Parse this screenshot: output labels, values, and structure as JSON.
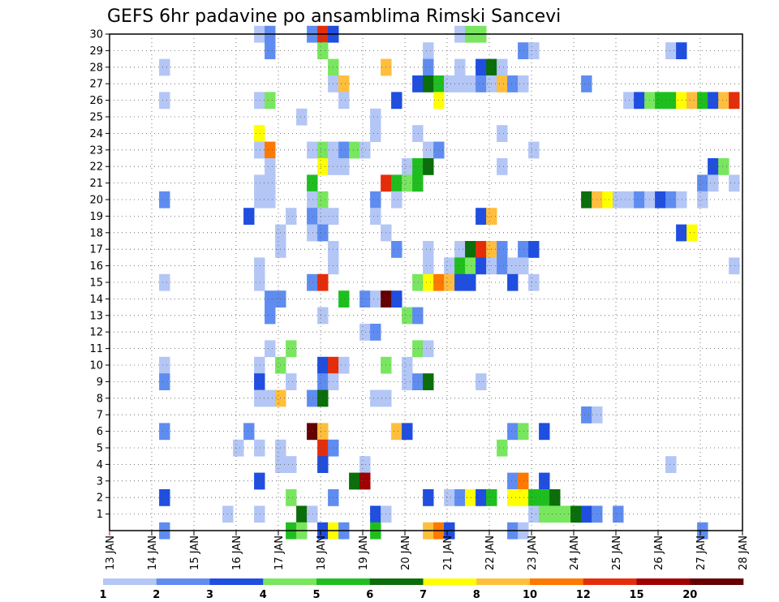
{
  "chart_data": {
    "type": "heatmap",
    "title": "GEFS 6hr padavine po ansamblima Rimski Sancevi",
    "xlabel": "",
    "ylabel": "",
    "x_ticks": [
      "13 JAN",
      "14 JAN",
      "15 JAN",
      "16 JAN",
      "17 JAN",
      "18 JAN",
      "19 JAN",
      "20 JAN",
      "21 JAN",
      "22 JAN",
      "23 JAN",
      "24 JAN",
      "25 JAN",
      "26 JAN",
      "27 JAN",
      "28 JAN"
    ],
    "x_range_days": [
      13,
      28
    ],
    "y_ticks": [
      1,
      2,
      3,
      4,
      5,
      6,
      7,
      8,
      9,
      10,
      11,
      12,
      13,
      14,
      15,
      16,
      17,
      18,
      19,
      20,
      21,
      22,
      23,
      24,
      25,
      26,
      27,
      28,
      29,
      30
    ],
    "y_range": [
      0,
      30
    ],
    "grid": true,
    "colorbar": {
      "labels": [
        "1",
        "2",
        "3",
        "4",
        "5",
        "6",
        "7",
        "8",
        "10",
        "12",
        "15",
        "20"
      ],
      "colors": [
        "#b3c6f5",
        "#5f8cf0",
        "#1f4ee0",
        "#78e65f",
        "#1fbe1f",
        "#0a6e0a",
        "#ffff00",
        "#ffbe3c",
        "#ff7800",
        "#e62d0a",
        "#a00000",
        "#640000"
      ]
    },
    "cells": [
      [
        30,
        16.55,
        0
      ],
      [
        30,
        16.8,
        1
      ],
      [
        30,
        17.8,
        1
      ],
      [
        30,
        18.05,
        9
      ],
      [
        30,
        18.3,
        2
      ],
      [
        30,
        21.3,
        0
      ],
      [
        30,
        21.55,
        3
      ],
      [
        30,
        21.8,
        3
      ],
      [
        29,
        16.8,
        1
      ],
      [
        29,
        18.05,
        3
      ],
      [
        29,
        20.55,
        0
      ],
      [
        29,
        22.8,
        1
      ],
      [
        29,
        23.05,
        0
      ],
      [
        29,
        26.3,
        0
      ],
      [
        29,
        26.55,
        2
      ],
      [
        28,
        14.3,
        0
      ],
      [
        28,
        18.3,
        3
      ],
      [
        28,
        19.55,
        7
      ],
      [
        28,
        20.55,
        1
      ],
      [
        28,
        21.3,
        0
      ],
      [
        28,
        21.8,
        2
      ],
      [
        28,
        22.05,
        5
      ],
      [
        28,
        22.3,
        0
      ],
      [
        27,
        18.3,
        0
      ],
      [
        27,
        18.55,
        7
      ],
      [
        27,
        20.3,
        2
      ],
      [
        27,
        20.55,
        5
      ],
      [
        27,
        20.8,
        4
      ],
      [
        27,
        21.05,
        0
      ],
      [
        27,
        21.3,
        0
      ],
      [
        27,
        21.55,
        0
      ],
      [
        27,
        21.8,
        1
      ],
      [
        27,
        22.05,
        0
      ],
      [
        27,
        22.3,
        7
      ],
      [
        27,
        22.55,
        1
      ],
      [
        27,
        22.8,
        0
      ],
      [
        27,
        24.3,
        1
      ],
      [
        26,
        14.3,
        0
      ],
      [
        26,
        16.55,
        0
      ],
      [
        26,
        16.8,
        3
      ],
      [
        26,
        18.55,
        0
      ],
      [
        26,
        19.8,
        2
      ],
      [
        26,
        20.8,
        6
      ],
      [
        26,
        25.3,
        0
      ],
      [
        26,
        25.55,
        2
      ],
      [
        26,
        25.8,
        3
      ],
      [
        26,
        26.05,
        4
      ],
      [
        26,
        26.3,
        4
      ],
      [
        26,
        26.55,
        6
      ],
      [
        26,
        26.8,
        7
      ],
      [
        26,
        27.05,
        4
      ],
      [
        26,
        27.3,
        2
      ],
      [
        26,
        27.55,
        7
      ],
      [
        26,
        27.8,
        9
      ],
      [
        25,
        17.55,
        0
      ],
      [
        25,
        19.3,
        0
      ],
      [
        24,
        16.55,
        6
      ],
      [
        24,
        19.3,
        0
      ],
      [
        24,
        20.3,
        0
      ],
      [
        24,
        22.3,
        0
      ],
      [
        23,
        16.55,
        0
      ],
      [
        23,
        16.8,
        8
      ],
      [
        23,
        17.8,
        0
      ],
      [
        23,
        18.05,
        3
      ],
      [
        23,
        18.3,
        0
      ],
      [
        23,
        18.55,
        1
      ],
      [
        23,
        18.8,
        3
      ],
      [
        23,
        19.05,
        0
      ],
      [
        23,
        20.55,
        0
      ],
      [
        23,
        20.8,
        1
      ],
      [
        23,
        23.05,
        0
      ],
      [
        22,
        16.8,
        0
      ],
      [
        22,
        18.05,
        6
      ],
      [
        22,
        18.3,
        0
      ],
      [
        22,
        18.55,
        0
      ],
      [
        22,
        20.05,
        0
      ],
      [
        22,
        20.3,
        4
      ],
      [
        22,
        20.55,
        5
      ],
      [
        22,
        22.3,
        0
      ],
      [
        22,
        27.3,
        2
      ],
      [
        22,
        27.55,
        3
      ],
      [
        21,
        16.55,
        0
      ],
      [
        21,
        16.8,
        0
      ],
      [
        21,
        17.8,
        4
      ],
      [
        21,
        19.55,
        9
      ],
      [
        21,
        19.8,
        4
      ],
      [
        21,
        20.05,
        3
      ],
      [
        21,
        20.3,
        4
      ],
      [
        21,
        27.05,
        1
      ],
      [
        21,
        27.3,
        0
      ],
      [
        21,
        27.8,
        0
      ],
      [
        20,
        14.3,
        1
      ],
      [
        20,
        16.55,
        0
      ],
      [
        20,
        16.8,
        0
      ],
      [
        20,
        17.8,
        0
      ],
      [
        20,
        18.05,
        3
      ],
      [
        20,
        19.3,
        1
      ],
      [
        20,
        19.8,
        0
      ],
      [
        20,
        24.3,
        5
      ],
      [
        20,
        24.55,
        7
      ],
      [
        20,
        24.8,
        6
      ],
      [
        20,
        25.05,
        0
      ],
      [
        20,
        25.3,
        0
      ],
      [
        20,
        25.55,
        1
      ],
      [
        20,
        25.8,
        0
      ],
      [
        20,
        26.05,
        2
      ],
      [
        20,
        26.3,
        1
      ],
      [
        20,
        26.55,
        0
      ],
      [
        20,
        27.05,
        0
      ],
      [
        19,
        16.3,
        2
      ],
      [
        19,
        17.3,
        0
      ],
      [
        19,
        17.8,
        1
      ],
      [
        19,
        18.05,
        0
      ],
      [
        19,
        18.3,
        0
      ],
      [
        19,
        19.3,
        0
      ],
      [
        19,
        21.8,
        2
      ],
      [
        19,
        22.05,
        7
      ],
      [
        18,
        17.05,
        0
      ],
      [
        18,
        17.8,
        0
      ],
      [
        18,
        18.05,
        1
      ],
      [
        18,
        19.55,
        0
      ],
      [
        18,
        26.55,
        2
      ],
      [
        18,
        26.8,
        6
      ],
      [
        17,
        17.05,
        0
      ],
      [
        17,
        18.3,
        0
      ],
      [
        17,
        19.8,
        1
      ],
      [
        17,
        20.55,
        0
      ],
      [
        17,
        21.3,
        0
      ],
      [
        17,
        21.55,
        5
      ],
      [
        17,
        21.8,
        9
      ],
      [
        17,
        22.05,
        7
      ],
      [
        17,
        22.3,
        1
      ],
      [
        17,
        22.8,
        1
      ],
      [
        17,
        23.05,
        2
      ],
      [
        16,
        16.55,
        0
      ],
      [
        16,
        18.3,
        0
      ],
      [
        16,
        20.55,
        0
      ],
      [
        16,
        21.05,
        0
      ],
      [
        16,
        21.3,
        4
      ],
      [
        16,
        21.55,
        3
      ],
      [
        16,
        21.8,
        2
      ],
      [
        16,
        22.05,
        0
      ],
      [
        16,
        22.3,
        1
      ],
      [
        16,
        22.55,
        0
      ],
      [
        16,
        22.8,
        0
      ],
      [
        16,
        27.8,
        0
      ],
      [
        15,
        14.3,
        0
      ],
      [
        15,
        16.55,
        0
      ],
      [
        15,
        17.8,
        1
      ],
      [
        15,
        18.05,
        9
      ],
      [
        15,
        20.3,
        3
      ],
      [
        15,
        20.55,
        6
      ],
      [
        15,
        20.8,
        8
      ],
      [
        15,
        21.05,
        7
      ],
      [
        15,
        21.3,
        2
      ],
      [
        15,
        21.55,
        2
      ],
      [
        15,
        22.55,
        2
      ],
      [
        15,
        23.05,
        0
      ],
      [
        14,
        16.8,
        1
      ],
      [
        14,
        17.05,
        1
      ],
      [
        14,
        18.55,
        4
      ],
      [
        14,
        19.05,
        1
      ],
      [
        14,
        19.3,
        0
      ],
      [
        14,
        19.55,
        11
      ],
      [
        14,
        19.8,
        2
      ],
      [
        13,
        16.8,
        1
      ],
      [
        13,
        18.05,
        0
      ],
      [
        13,
        20.05,
        3
      ],
      [
        13,
        20.3,
        1
      ],
      [
        12,
        19.05,
        0
      ],
      [
        12,
        19.3,
        1
      ],
      [
        11,
        16.8,
        0
      ],
      [
        11,
        17.3,
        3
      ],
      [
        11,
        20.3,
        3
      ],
      [
        11,
        20.55,
        0
      ],
      [
        10,
        14.3,
        0
      ],
      [
        10,
        16.55,
        0
      ],
      [
        10,
        17.05,
        3
      ],
      [
        10,
        18.05,
        2
      ],
      [
        10,
        18.3,
        9
      ],
      [
        10,
        18.55,
        0
      ],
      [
        10,
        19.55,
        3
      ],
      [
        10,
        20.05,
        0
      ],
      [
        9,
        14.3,
        1
      ],
      [
        9,
        16.55,
        2
      ],
      [
        9,
        17.3,
        0
      ],
      [
        9,
        18.05,
        1
      ],
      [
        9,
        18.3,
        0
      ],
      [
        9,
        20.05,
        0
      ],
      [
        9,
        20.3,
        1
      ],
      [
        9,
        20.55,
        5
      ],
      [
        9,
        21.8,
        0
      ],
      [
        8,
        16.55,
        0
      ],
      [
        8,
        16.8,
        0
      ],
      [
        8,
        17.05,
        7
      ],
      [
        8,
        17.8,
        1
      ],
      [
        8,
        18.05,
        5
      ],
      [
        8,
        19.3,
        0
      ],
      [
        8,
        19.55,
        0
      ],
      [
        7,
        24.3,
        1
      ],
      [
        7,
        24.55,
        0
      ],
      [
        6,
        14.3,
        1
      ],
      [
        6,
        16.3,
        1
      ],
      [
        6,
        17.8,
        11
      ],
      [
        6,
        18.05,
        7
      ],
      [
        6,
        19.8,
        7
      ],
      [
        6,
        20.05,
        2
      ],
      [
        6,
        22.55,
        1
      ],
      [
        6,
        22.8,
        3
      ],
      [
        6,
        23.3,
        2
      ],
      [
        5,
        16.05,
        0
      ],
      [
        5,
        16.55,
        0
      ],
      [
        5,
        17.05,
        0
      ],
      [
        5,
        18.05,
        9
      ],
      [
        5,
        18.3,
        1
      ],
      [
        5,
        22.3,
        3
      ],
      [
        4,
        17.05,
        0
      ],
      [
        4,
        17.3,
        0
      ],
      [
        4,
        18.05,
        2
      ],
      [
        4,
        19.05,
        0
      ],
      [
        4,
        26.3,
        0
      ],
      [
        3,
        16.55,
        2
      ],
      [
        3,
        18.8,
        5
      ],
      [
        3,
        19.05,
        10
      ],
      [
        3,
        22.55,
        1
      ],
      [
        3,
        22.8,
        8
      ],
      [
        3,
        23.3,
        2
      ],
      [
        2,
        14.3,
        2
      ],
      [
        2,
        17.3,
        3
      ],
      [
        2,
        18.3,
        1
      ],
      [
        2,
        20.55,
        2
      ],
      [
        2,
        21.05,
        0
      ],
      [
        2,
        21.3,
        1
      ],
      [
        2,
        21.55,
        6
      ],
      [
        2,
        21.8,
        2
      ],
      [
        2,
        22.05,
        4
      ],
      [
        2,
        22.55,
        6
      ],
      [
        2,
        22.8,
        6
      ],
      [
        2,
        23.05,
        4
      ],
      [
        2,
        23.3,
        4
      ],
      [
        2,
        23.55,
        5
      ],
      [
        1,
        15.8,
        0
      ],
      [
        1,
        16.55,
        0
      ],
      [
        1,
        17.55,
        5
      ],
      [
        1,
        17.8,
        0
      ],
      [
        1,
        19.3,
        2
      ],
      [
        1,
        19.55,
        0
      ],
      [
        1,
        23.05,
        0
      ],
      [
        1,
        23.3,
        3
      ],
      [
        1,
        23.55,
        3
      ],
      [
        1,
        23.8,
        3
      ],
      [
        1,
        24.05,
        5
      ],
      [
        1,
        24.3,
        2
      ],
      [
        1,
        24.55,
        1
      ],
      [
        1,
        25.05,
        1
      ],
      [
        0,
        14.3,
        1
      ],
      [
        0,
        17.3,
        4
      ],
      [
        0,
        17.55,
        3
      ],
      [
        0,
        18.05,
        2
      ],
      [
        0,
        18.3,
        6
      ],
      [
        0,
        18.55,
        1
      ],
      [
        0,
        19.3,
        4
      ],
      [
        0,
        20.55,
        7
      ],
      [
        0,
        20.8,
        8
      ],
      [
        0,
        21.05,
        2
      ],
      [
        0,
        22.55,
        1
      ],
      [
        0,
        22.8,
        0
      ],
      [
        0,
        27.05,
        1
      ]
    ]
  }
}
